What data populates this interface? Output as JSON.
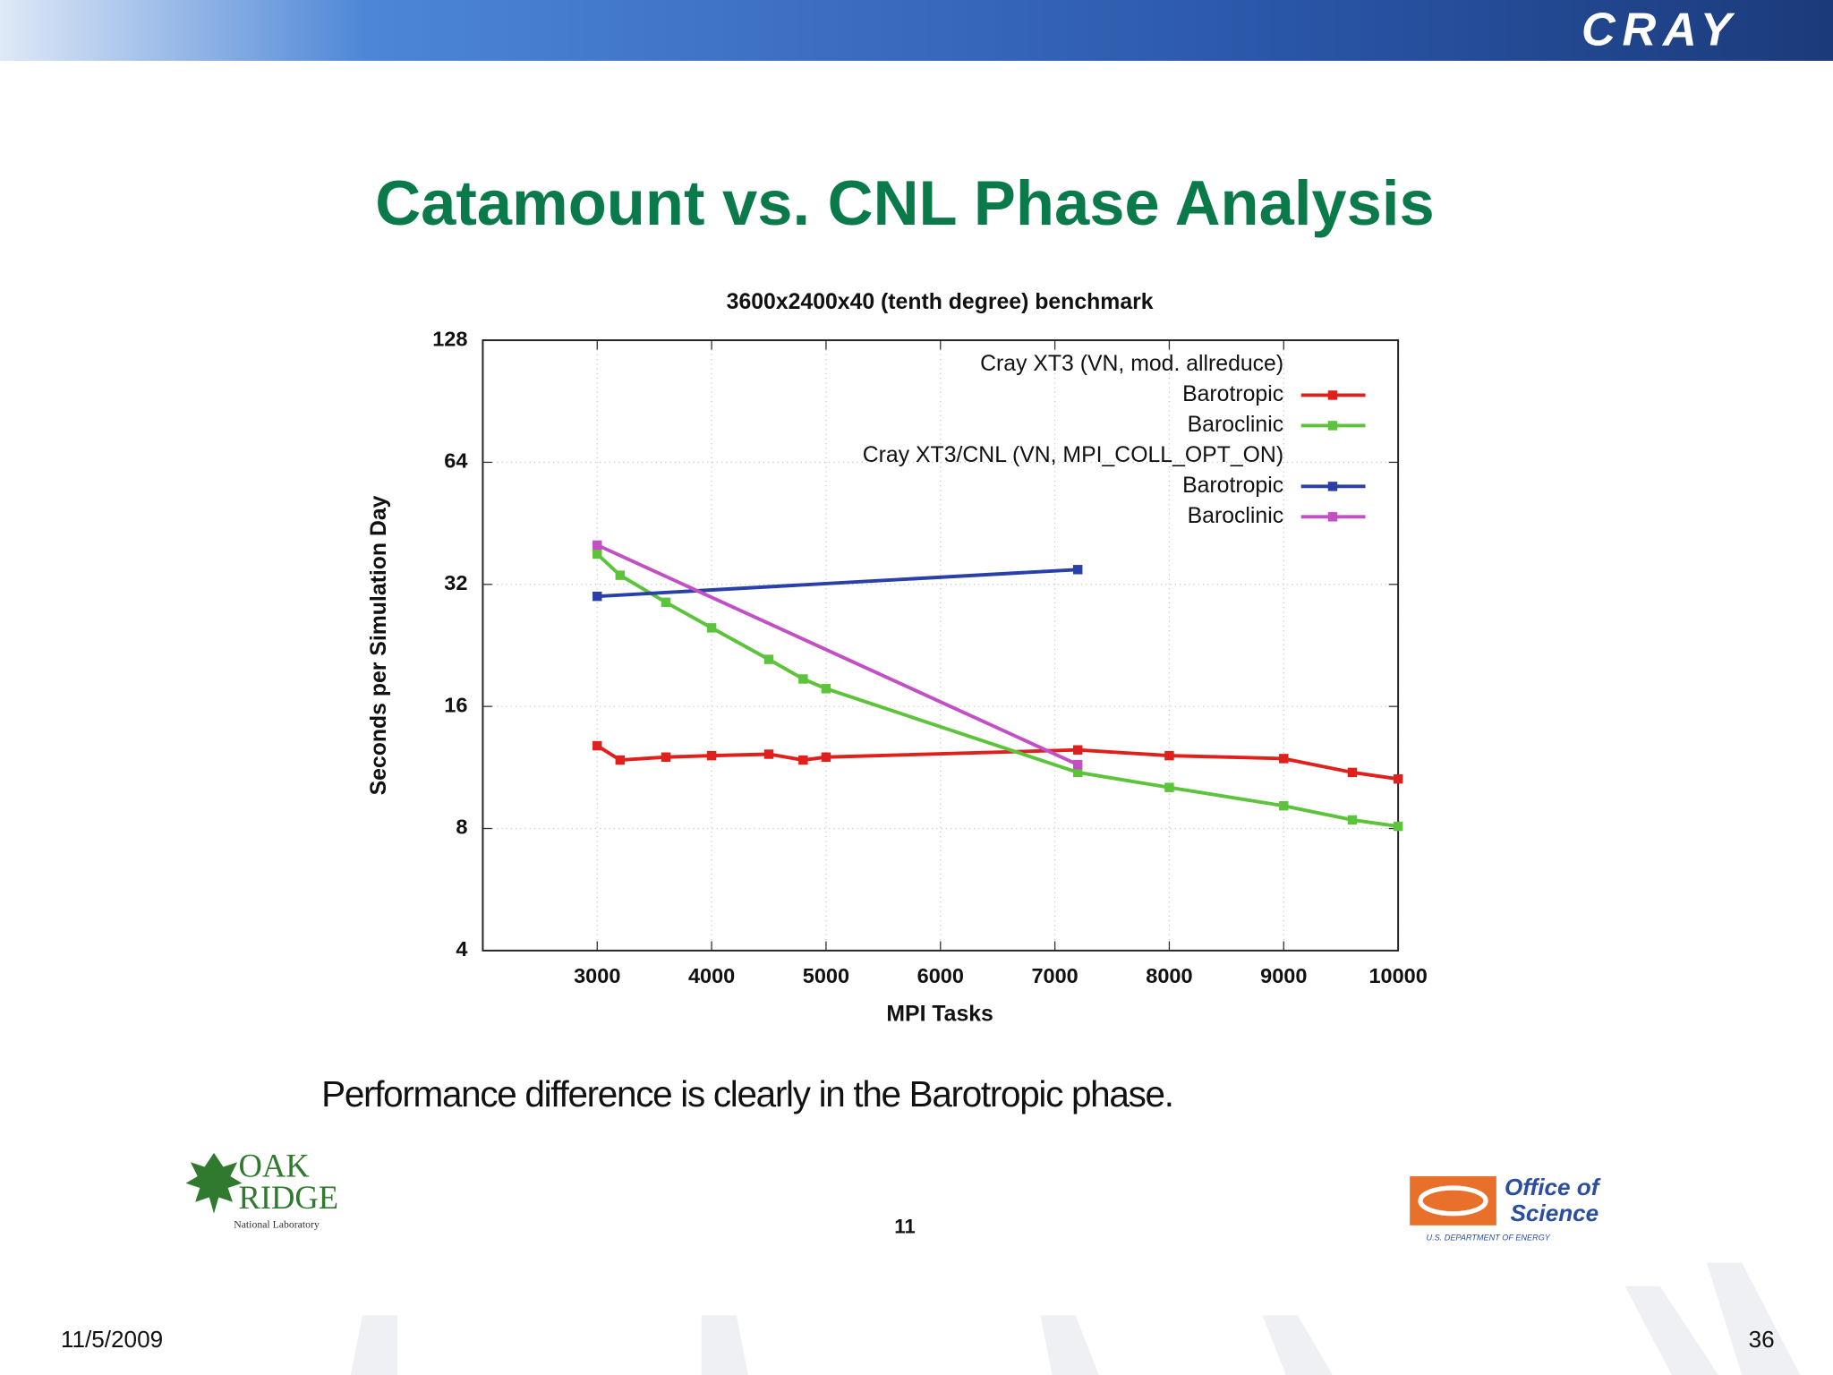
{
  "header": {
    "logo": "CRAY"
  },
  "slide_title": "Catamount vs. CNL Phase Analysis",
  "chart_data": {
    "type": "line",
    "title": "3600x2400x40 (tenth degree) benchmark",
    "x_label": "MPI Tasks",
    "y_label": "Seconds per Simulation Day",
    "xlim": [
      2000,
      10000
    ],
    "xticks": [
      3000,
      4000,
      5000,
      6000,
      7000,
      8000,
      9000,
      10000
    ],
    "ylim": [
      4,
      128
    ],
    "yticks": [
      4,
      8,
      16,
      32,
      64,
      128
    ],
    "yscale": "log",
    "grid": true,
    "legend": "upper right",
    "groups": [
      {
        "title": "Cray XT3 (VN, mod. allreduce)",
        "series": [
          {
            "name": "Barotropic",
            "color": "#e0201c",
            "x": [
              3000,
              3200,
              3600,
              4000,
              4500,
              4800,
              5000,
              7200,
              8000,
              9000,
              9600,
              10000
            ],
            "values": [
              12.8,
              11.8,
              12.0,
              12.1,
              12.2,
              11.8,
              12.0,
              12.5,
              12.1,
              11.9,
              11.0,
              10.6
            ]
          },
          {
            "name": "Baroclinic",
            "color": "#5cc43a",
            "x": [
              3000,
              3200,
              3600,
              4000,
              4500,
              4800,
              5000,
              7200,
              8000,
              9000,
              9600,
              10000
            ],
            "values": [
              38.0,
              33.7,
              28.9,
              25.0,
              20.9,
              18.7,
              17.7,
              11.0,
              10.1,
              9.1,
              8.4,
              8.1
            ]
          }
        ]
      },
      {
        "title": "Cray XT3/CNL (VN, MPI_COLL_OPT_ON)",
        "series": [
          {
            "name": "Barotropic",
            "color": "#2a3fa8",
            "x": [
              3000,
              7200
            ],
            "values": [
              29.9,
              34.8
            ]
          },
          {
            "name": "Baroclinic",
            "color": "#c24fc4",
            "x": [
              3000,
              7200
            ],
            "values": [
              40.0,
              11.5
            ]
          }
        ]
      }
    ]
  },
  "caption": "Performance difference is clearly in the Barotropic phase.",
  "footer": {
    "left_logo": {
      "line1": "OAK",
      "line2": "RIDGE",
      "line3": "National Laboratory"
    },
    "page_number": "11",
    "right_logo": {
      "line1": "Office of",
      "line2": "Science",
      "line3": "U.S. DEPARTMENT OF ENERGY"
    },
    "date": "11/5/2009",
    "slide_number": "36"
  }
}
